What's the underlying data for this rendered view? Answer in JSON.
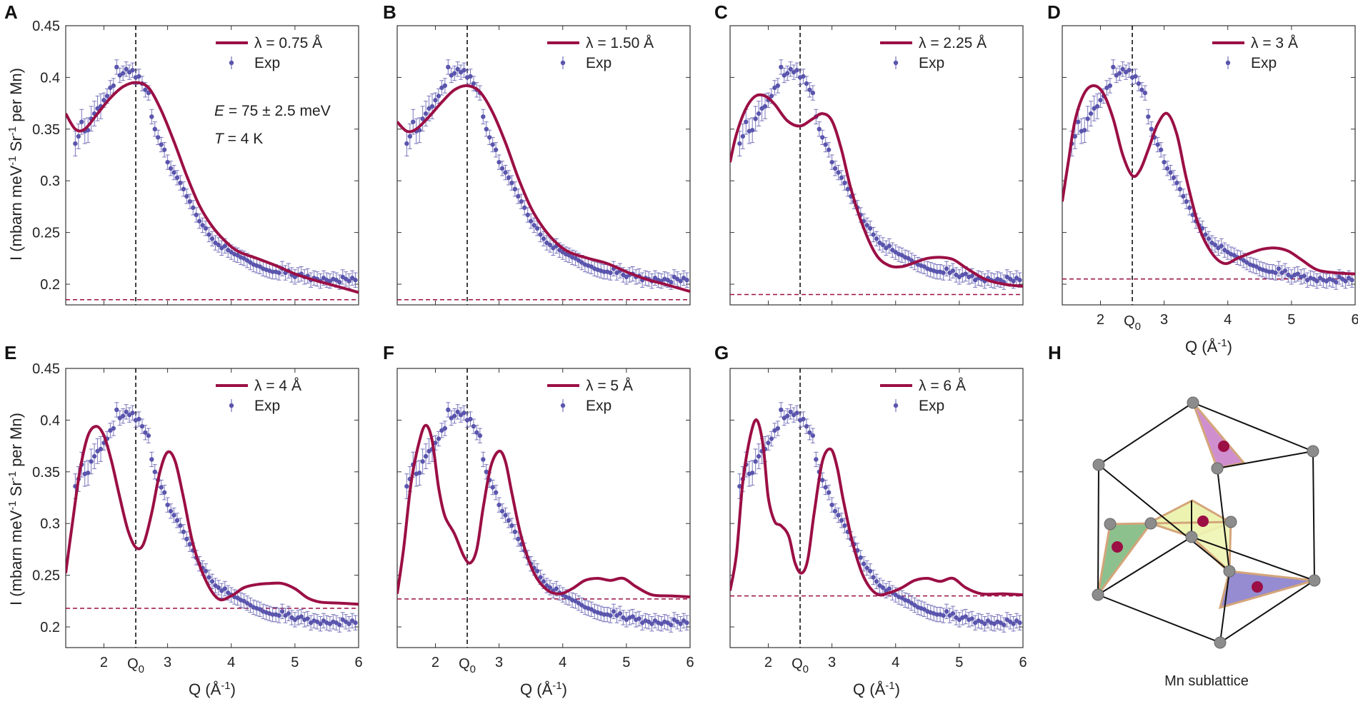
{
  "figure": {
    "ylabel_main": "I (mbarn meV",
    "ylabel_sup1": "-1",
    "ylabel_mid": " Sr",
    "ylabel_sup2": "-1",
    "ylabel_end": " per Mn)",
    "xlabel_main": "Q (Å",
    "xlabel_sup": "-1",
    "xlabel_end": ")",
    "q0_main": "Q",
    "q0_sub": "0",
    "exp_label": "Exp",
    "annotation_E": "E",
    "annotation_E_rest": " = 75 ± 2.5 meV",
    "annotation_T": "T",
    "annotation_T_rest": " = 4 K",
    "lattice_caption": "Mn sublattice",
    "panel_h_letter": "H"
  },
  "colors": {
    "model": "#9b0f45",
    "exp": "#5a55ad",
    "baseline": "#9b0f45",
    "vline": "#000000"
  },
  "chart_data": [
    {
      "panel": "A",
      "type": "line",
      "title": "",
      "legend_model": "λ = 0.75 Å",
      "xlim": [
        1.4,
        6
      ],
      "ylim": [
        0.18,
        0.45
      ],
      "x_q0": 2.5,
      "baseline": 0.185,
      "show_x_ticks": false,
      "show_y_ticks": true,
      "show_annotation": true,
      "model": {
        "x": [
          1.4,
          1.55,
          1.7,
          1.9,
          2.1,
          2.3,
          2.5,
          2.7,
          2.9,
          3.1,
          3.3,
          3.5,
          3.7,
          3.9,
          4.1,
          4.4,
          4.7,
          5.0,
          5.3,
          5.6,
          6.0
        ],
        "y": [
          0.365,
          0.35,
          0.35,
          0.365,
          0.38,
          0.391,
          0.395,
          0.39,
          0.368,
          0.338,
          0.305,
          0.276,
          0.256,
          0.242,
          0.232,
          0.225,
          0.218,
          0.21,
          0.204,
          0.199,
          0.192
        ]
      }
    },
    {
      "panel": "B",
      "type": "line",
      "title": "",
      "legend_model": "λ = 1.50 Å",
      "xlim": [
        1.4,
        6
      ],
      "ylim": [
        0.18,
        0.45
      ],
      "x_q0": 2.5,
      "baseline": 0.185,
      "show_x_ticks": false,
      "show_y_ticks": false,
      "show_annotation": false,
      "model": {
        "x": [
          1.4,
          1.55,
          1.7,
          1.9,
          2.1,
          2.3,
          2.5,
          2.7,
          2.9,
          3.1,
          3.3,
          3.5,
          3.7,
          3.9,
          4.1,
          4.4,
          4.7,
          5.0,
          5.3,
          5.6,
          6.0
        ],
        "y": [
          0.357,
          0.348,
          0.35,
          0.362,
          0.376,
          0.388,
          0.392,
          0.386,
          0.366,
          0.337,
          0.303,
          0.274,
          0.254,
          0.24,
          0.231,
          0.225,
          0.22,
          0.212,
          0.205,
          0.2,
          0.193
        ]
      }
    },
    {
      "panel": "C",
      "type": "line",
      "title": "",
      "legend_model": "λ = 2.25 Å",
      "xlim": [
        1.4,
        6
      ],
      "ylim": [
        0.18,
        0.45
      ],
      "x_q0": 2.5,
      "baseline": 0.19,
      "show_x_ticks": false,
      "show_y_ticks": false,
      "show_annotation": false,
      "model": {
        "x": [
          1.4,
          1.5,
          1.65,
          1.8,
          1.95,
          2.1,
          2.3,
          2.5,
          2.7,
          2.85,
          3.0,
          3.15,
          3.3,
          3.5,
          3.7,
          3.9,
          4.1,
          4.3,
          4.5,
          4.7,
          4.9,
          5.1,
          5.4,
          5.7,
          6.0
        ],
        "y": [
          0.318,
          0.345,
          0.37,
          0.382,
          0.382,
          0.374,
          0.358,
          0.353,
          0.36,
          0.365,
          0.358,
          0.33,
          0.292,
          0.254,
          0.228,
          0.218,
          0.217,
          0.221,
          0.225,
          0.226,
          0.224,
          0.216,
          0.205,
          0.2,
          0.198
        ]
      }
    },
    {
      "panel": "D",
      "type": "line",
      "title": "",
      "legend_model": "λ = 3 Å",
      "xlim": [
        1.4,
        6
      ],
      "ylim": [
        0.18,
        0.45
      ],
      "x_q0": 2.5,
      "baseline": 0.205,
      "show_x_ticks": true,
      "show_y_ticks": false,
      "show_annotation": false,
      "model": {
        "x": [
          1.4,
          1.5,
          1.6,
          1.75,
          1.9,
          2.05,
          2.2,
          2.35,
          2.5,
          2.62,
          2.75,
          2.9,
          3.05,
          3.2,
          3.35,
          3.55,
          3.75,
          3.95,
          4.15,
          4.35,
          4.55,
          4.75,
          4.95,
          5.15,
          5.4,
          5.7,
          6.0
        ],
        "y": [
          0.28,
          0.32,
          0.358,
          0.385,
          0.392,
          0.384,
          0.36,
          0.325,
          0.305,
          0.31,
          0.33,
          0.355,
          0.365,
          0.345,
          0.302,
          0.255,
          0.23,
          0.22,
          0.225,
          0.23,
          0.234,
          0.235,
          0.232,
          0.224,
          0.214,
          0.211,
          0.21
        ]
      }
    },
    {
      "panel": "E",
      "type": "line",
      "title": "",
      "legend_model": "λ = 4 Å",
      "xlim": [
        1.4,
        6
      ],
      "ylim": [
        0.18,
        0.45
      ],
      "x_q0": 2.5,
      "baseline": 0.218,
      "show_x_ticks": true,
      "show_y_ticks": true,
      "show_annotation": false,
      "model": {
        "x": [
          1.4,
          1.5,
          1.62,
          1.75,
          1.88,
          2.0,
          2.12,
          2.25,
          2.38,
          2.5,
          2.62,
          2.75,
          2.88,
          3.0,
          3.12,
          3.25,
          3.4,
          3.6,
          3.8,
          4.0,
          4.2,
          4.4,
          4.6,
          4.8,
          5.0,
          5.2,
          5.4,
          5.7,
          6.0
        ],
        "y": [
          0.252,
          0.298,
          0.35,
          0.385,
          0.394,
          0.385,
          0.36,
          0.325,
          0.293,
          0.277,
          0.28,
          0.31,
          0.35,
          0.369,
          0.36,
          0.325,
          0.28,
          0.245,
          0.227,
          0.23,
          0.238,
          0.241,
          0.242,
          0.242,
          0.237,
          0.228,
          0.224,
          0.223,
          0.222
        ]
      }
    },
    {
      "panel": "F",
      "type": "line",
      "title": "",
      "legend_model": "λ = 5 Å",
      "xlim": [
        1.4,
        6
      ],
      "ylim": [
        0.18,
        0.45
      ],
      "x_q0": 2.5,
      "baseline": 0.227,
      "show_x_ticks": true,
      "show_y_ticks": false,
      "show_annotation": false,
      "model": {
        "x": [
          1.4,
          1.5,
          1.62,
          1.75,
          1.85,
          1.95,
          2.05,
          2.15,
          2.3,
          2.45,
          2.55,
          2.65,
          2.75,
          2.87,
          3.0,
          3.1,
          3.2,
          3.35,
          3.55,
          3.75,
          3.95,
          4.15,
          4.35,
          4.55,
          4.75,
          4.95,
          5.15,
          5.4,
          5.7,
          6.0
        ],
        "y": [
          0.232,
          0.275,
          0.34,
          0.38,
          0.395,
          0.38,
          0.335,
          0.307,
          0.29,
          0.268,
          0.262,
          0.275,
          0.315,
          0.355,
          0.37,
          0.36,
          0.33,
          0.287,
          0.252,
          0.236,
          0.232,
          0.237,
          0.245,
          0.247,
          0.245,
          0.247,
          0.239,
          0.231,
          0.23,
          0.229
        ]
      }
    },
    {
      "panel": "G",
      "type": "line",
      "title": "",
      "legend_model": "λ = 6 Å",
      "xlim": [
        1.4,
        6
      ],
      "ylim": [
        0.18,
        0.45
      ],
      "x_q0": 2.5,
      "baseline": 0.23,
      "show_x_ticks": true,
      "show_y_ticks": false,
      "show_annotation": false,
      "model": {
        "x": [
          1.4,
          1.5,
          1.6,
          1.72,
          1.82,
          1.92,
          2.0,
          2.1,
          2.2,
          2.32,
          2.42,
          2.52,
          2.62,
          2.72,
          2.85,
          2.98,
          3.08,
          3.18,
          3.33,
          3.5,
          3.7,
          3.9,
          4.1,
          4.3,
          4.5,
          4.7,
          4.9,
          5.1,
          5.35,
          5.7,
          6.0
        ],
        "y": [
          0.235,
          0.27,
          0.34,
          0.385,
          0.4,
          0.375,
          0.325,
          0.302,
          0.298,
          0.288,
          0.262,
          0.252,
          0.265,
          0.31,
          0.36,
          0.372,
          0.355,
          0.322,
          0.28,
          0.248,
          0.232,
          0.233,
          0.238,
          0.245,
          0.247,
          0.244,
          0.247,
          0.238,
          0.232,
          0.232,
          0.231
        ]
      }
    }
  ]
}
